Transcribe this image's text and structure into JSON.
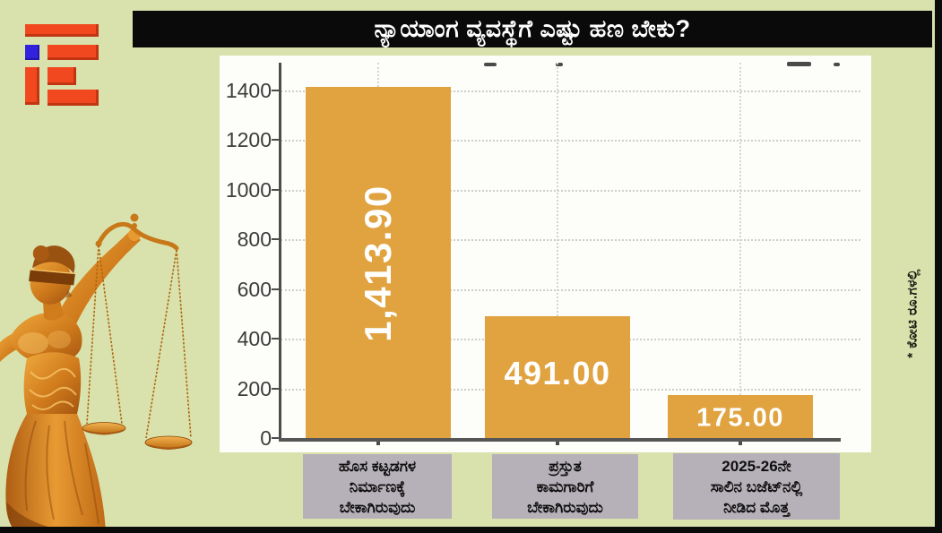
{
  "page": {
    "background_color": "#D9E2AC",
    "title": "ನ್ಯಾಯಾಂಗ ವ್ಯವಸ್ಥೆಗೆ ಎಷ್ಟು ಹಣ ಬೇಕು?",
    "title_bar_color": "#0A0A0A",
    "logo_colors": {
      "orange": "#F2481F",
      "blue": "#3222DD"
    }
  },
  "chart_data": {
    "type": "bar",
    "title": "",
    "categories": [
      {
        "lines": [
          "ಹೊಸ ಕಟ್ಟಡಗಳ",
          "ನಿರ್ಮಾಣಕ್ಕೆ",
          "ಬೇಕಾಗಿರುವುದು"
        ]
      },
      {
        "lines": [
          "ಪ್ರಸ್ತುತ",
          "ಕಾಮಗಾರಿಗೆ",
          "ಬೇಕಾಗಿರುವುದು"
        ]
      },
      {
        "lines": [
          "2025-26ನೇ",
          "ಸಾಲಿನ ಬಜೆಟ್‌ನಲ್ಲಿ",
          "ನೀಡಿದ ಮೊತ್ತ"
        ]
      }
    ],
    "values": [
      1413.9,
      491.0,
      175.0
    ],
    "value_labels": [
      "1,413.90",
      "491.00",
      "175.00"
    ],
    "unit_note": "* ಕೋಟಿ ರೂ.ಗಳಲ್ಲಿ",
    "bar_color": "#E0A340",
    "yticks": [
      0,
      200,
      400,
      600,
      800,
      1000,
      1200,
      1400
    ],
    "ylim": [
      0,
      1510
    ],
    "grid": true,
    "legend": false,
    "xlabel": "",
    "ylabel": ""
  }
}
